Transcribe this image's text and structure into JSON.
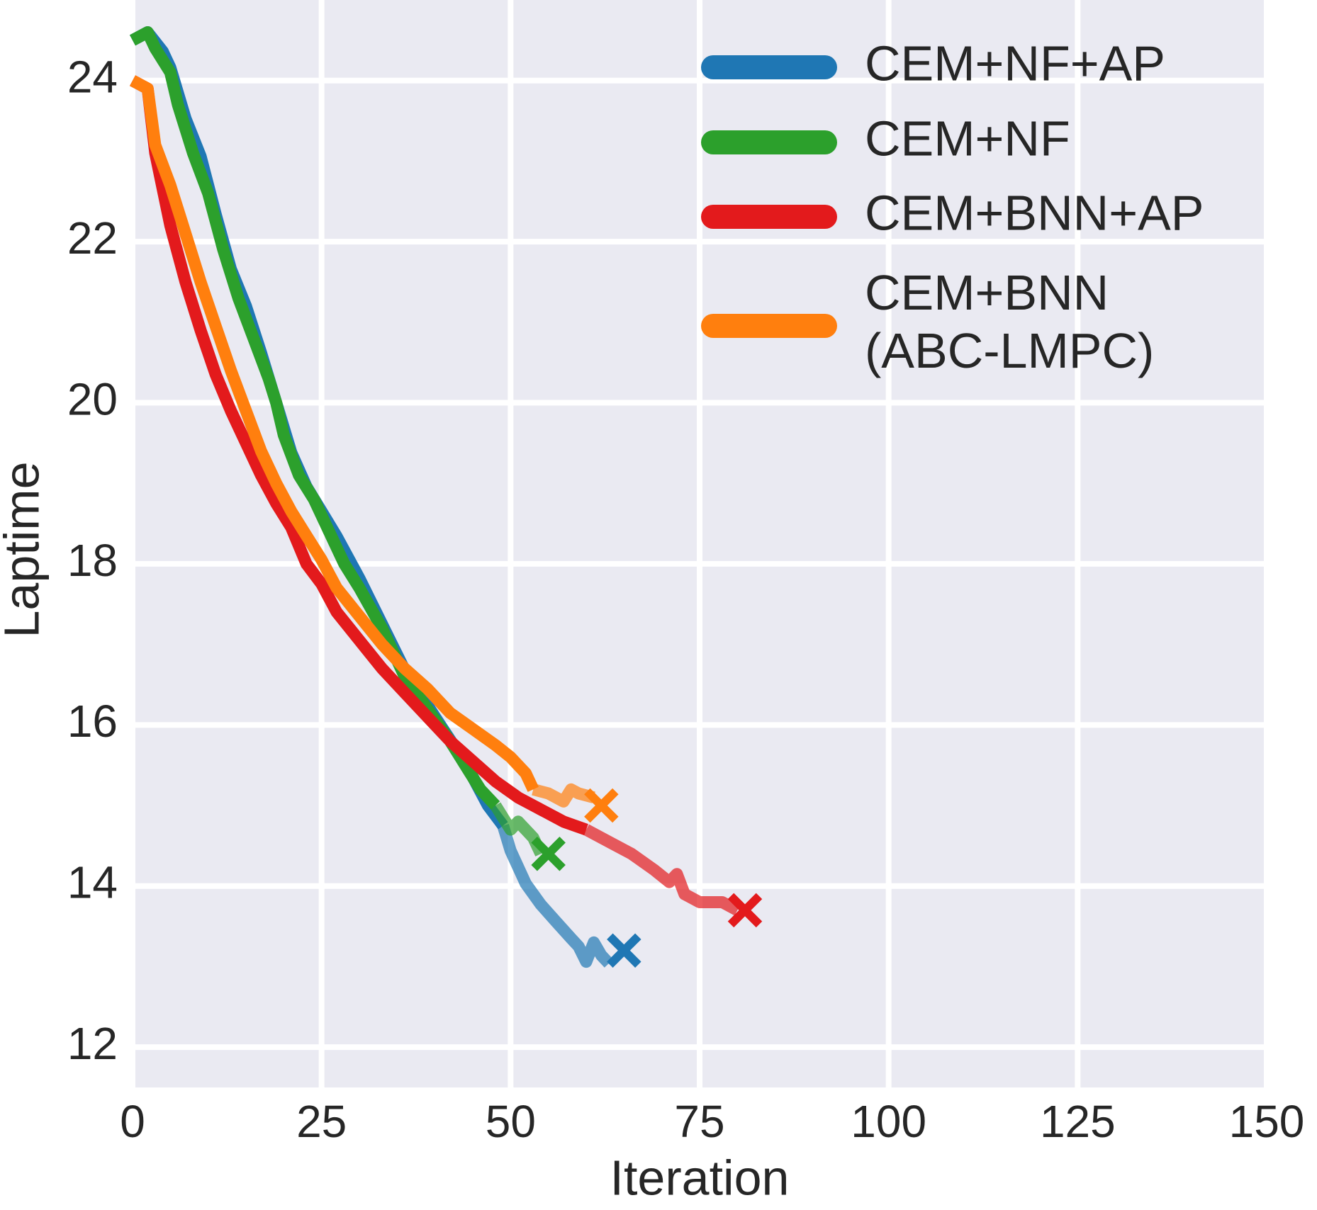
{
  "chart_data": {
    "type": "line",
    "x_label": "Iteration",
    "y_label": "Laptime",
    "xlim": [
      0,
      150
    ],
    "ylim": [
      11.5,
      25
    ],
    "xticks": [
      0,
      25,
      50,
      75,
      100,
      125,
      150
    ],
    "yticks": [
      12,
      14,
      16,
      18,
      20,
      22,
      24
    ],
    "grid": true,
    "legend": "upper right",
    "series": [
      {
        "name": "CEM+NF+AP",
        "color": "#1f77b4",
        "fade_from_x": 50,
        "x": [
          0,
          2,
          4,
          5,
          7,
          9,
          11,
          13,
          15,
          17,
          19,
          21,
          23,
          25,
          27,
          30,
          33,
          36,
          40,
          44,
          47,
          49,
          50,
          52,
          54,
          56,
          58,
          59,
          60,
          61,
          62,
          63
        ],
        "values": [
          24.5,
          24.6,
          24.36,
          24.16,
          23.53,
          23.06,
          22.34,
          21.66,
          21.2,
          20.62,
          20.0,
          19.38,
          18.96,
          18.65,
          18.34,
          17.82,
          17.25,
          16.68,
          16.1,
          15.53,
          15.0,
          14.75,
          14.44,
          14.03,
          13.77,
          13.56,
          13.35,
          13.25,
          13.06,
          13.3,
          13.14,
          13.04
        ],
        "marker": [
          65,
          13.2
        ]
      },
      {
        "name": "CEM+NF",
        "color": "#2ca02c",
        "fade_from_x": 50,
        "x": [
          0,
          2,
          3,
          5,
          6,
          8,
          10,
          12,
          14,
          16,
          18,
          19,
          20,
          22,
          24,
          26,
          28,
          30,
          33,
          36,
          39,
          42,
          44,
          46,
          48,
          50,
          51,
          53,
          54
        ],
        "values": [
          24.5,
          24.6,
          24.4,
          24.1,
          23.7,
          23.1,
          22.6,
          21.9,
          21.3,
          20.8,
          20.3,
          20.0,
          19.6,
          19.1,
          18.8,
          18.4,
          18.0,
          17.7,
          17.2,
          16.6,
          16.2,
          15.8,
          15.5,
          15.2,
          15.0,
          14.7,
          14.8,
          14.6,
          14.4
        ],
        "marker": [
          55,
          14.4
        ]
      },
      {
        "name": "CEM+BNN+AP",
        "color": "#e31a1c",
        "fade_from_x": 63,
        "x": [
          0,
          2,
          3,
          5,
          7,
          9,
          11,
          13,
          15,
          17,
          19,
          21,
          23,
          25,
          27,
          30,
          33,
          36,
          39,
          42,
          45,
          48,
          51,
          54,
          57,
          60,
          63,
          66,
          69,
          71,
          72,
          73,
          75,
          78,
          80
        ],
        "values": [
          24.0,
          23.9,
          23.1,
          22.2,
          21.5,
          20.9,
          20.35,
          19.9,
          19.5,
          19.1,
          18.75,
          18.45,
          18.0,
          17.75,
          17.4,
          17.05,
          16.7,
          16.4,
          16.1,
          15.8,
          15.55,
          15.3,
          15.1,
          14.95,
          14.8,
          14.7,
          14.55,
          14.4,
          14.2,
          14.05,
          14.15,
          13.9,
          13.8,
          13.8,
          13.7
        ],
        "marker": [
          81,
          13.7
        ]
      },
      {
        "name": "CEM+BNN\n(ABC-LMPC)",
        "color": "#ff7f0e",
        "fade_from_x": 54,
        "x": [
          0,
          2,
          3,
          5,
          7,
          9,
          11,
          13,
          15,
          17,
          19,
          21,
          23,
          25,
          27,
          30,
          33,
          36,
          39,
          42,
          45,
          48,
          50,
          52,
          53,
          55,
          57,
          58,
          59,
          61
        ],
        "values": [
          24.0,
          23.9,
          23.2,
          22.7,
          22.1,
          21.5,
          20.95,
          20.4,
          19.9,
          19.4,
          19.0,
          18.65,
          18.35,
          18.05,
          17.7,
          17.35,
          17.0,
          16.7,
          16.45,
          16.15,
          15.95,
          15.75,
          15.6,
          15.4,
          15.2,
          15.15,
          15.05,
          15.2,
          15.15,
          15.1
        ],
        "marker": [
          62,
          15.0
        ]
      }
    ]
  }
}
